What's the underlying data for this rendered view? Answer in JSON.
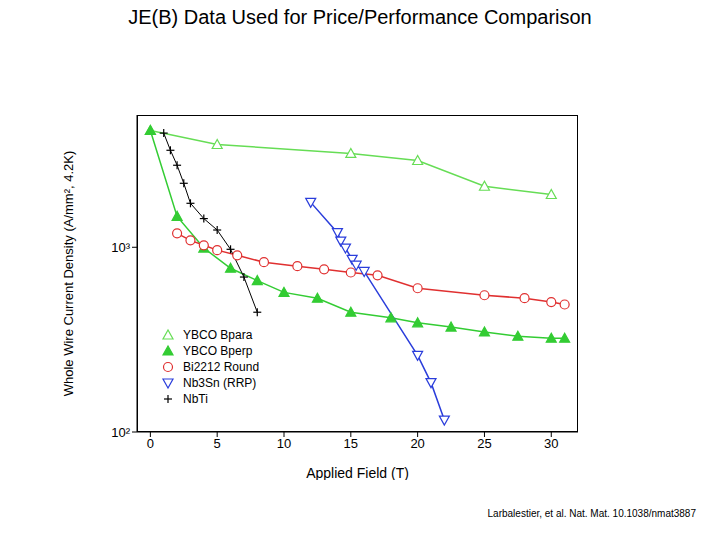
{
  "chart_data": {
    "type": "line",
    "title": "JE(B) Data Used for Price/Performance Comparison",
    "x_label": "Applied Field (T)",
    "y_label": "Whole Wire Current Density (A/mm², 4.2K)",
    "annotations": [
      "Larbalestier, et al. Nat. Mat. 10.1038/nmat3887"
    ],
    "log": "y",
    "grid": false,
    "legend": "lower left",
    "xlim": [
      -1,
      32
    ],
    "xticks": [
      0,
      5,
      10,
      15,
      20,
      25,
      30
    ],
    "ylim": [
      100,
      5200
    ],
    "yticks": [
      {
        "value": 100,
        "label": "10²"
      },
      {
        "value": 1000,
        "label": "10³"
      }
    ],
    "series": [
      {
        "name": "YBCO Bpara",
        "color": "#66dd55",
        "marker": "triangle_open",
        "line_style": "solid",
        "x": [
          0,
          5,
          15,
          20,
          25,
          30
        ],
        "values": [
          4290,
          3600,
          3220,
          2950,
          2140,
          1930
        ]
      },
      {
        "name": "YBCO Bperp",
        "color": "#33cc33",
        "marker": "triangle",
        "line_style": "solid",
        "x": [
          0,
          2,
          4,
          6,
          8,
          10,
          12.5,
          15,
          18,
          20,
          22.5,
          25,
          27.5,
          30,
          31
        ],
        "values": [
          4290,
          1470,
          990,
          770,
          660,
          570,
          530,
          445,
          415,
          390,
          370,
          348,
          330,
          322,
          322
        ]
      },
      {
        "name": "Bi2212 Round",
        "color": "#e03030",
        "marker": "circle_open",
        "line_style": "solid",
        "x": [
          2,
          3,
          4,
          5,
          6.5,
          8.5,
          11,
          13,
          15,
          17,
          20,
          25,
          28,
          30,
          31
        ],
        "values": [
          1190,
          1090,
          1025,
          965,
          905,
          830,
          790,
          760,
          730,
          705,
          600,
          550,
          530,
          505,
          490
        ]
      },
      {
        "name": "Nb3Sn (RRP)",
        "color": "#2a3ddb",
        "marker": "triangle_down_open",
        "line_style": "solid",
        "x": [
          12,
          14,
          14.25,
          14.6,
          15.1,
          15.4,
          16,
          20,
          21,
          22
        ],
        "values": [
          1750,
          1200,
          1080,
          990,
          860,
          800,
          740,
          260,
          185,
          116
        ]
      },
      {
        "name": "NbTi",
        "color": "#000000",
        "marker": "plus",
        "line_style": "solid",
        "x": [
          1,
          1.5,
          2,
          2.5,
          3,
          4,
          5,
          6,
          7,
          8
        ],
        "values": [
          4150,
          3350,
          2780,
          2220,
          1730,
          1430,
          1240,
          975,
          690,
          445
        ]
      }
    ]
  }
}
